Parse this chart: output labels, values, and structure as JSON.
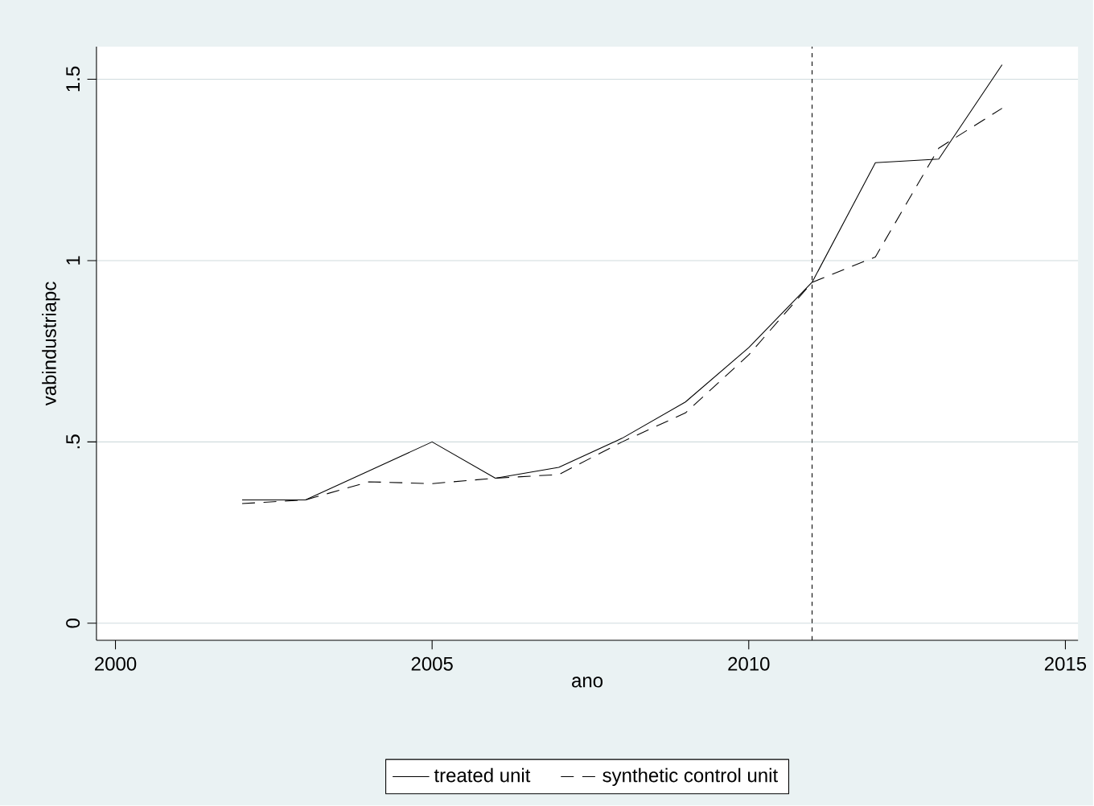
{
  "chart_data": {
    "type": "line",
    "xlabel": "ano",
    "ylabel": "vabindustriapc",
    "x": [
      2002,
      2003,
      2004,
      2005,
      2006,
      2007,
      2008,
      2009,
      2010,
      2011,
      2012,
      2013,
      2014
    ],
    "series": [
      {
        "name": "treated unit",
        "color": "#000000",
        "line_style": "solid",
        "values": [
          0.34,
          0.34,
          0.42,
          0.5,
          0.4,
          0.43,
          0.51,
          0.61,
          0.76,
          0.94,
          1.27,
          1.28,
          1.54
        ]
      },
      {
        "name": "synthetic control unit",
        "color": "#000000",
        "line_style": "dashed",
        "values": [
          0.33,
          0.34,
          0.39,
          0.385,
          0.4,
          0.41,
          0.5,
          0.58,
          0.74,
          0.94,
          1.01,
          1.31,
          1.42
        ]
      }
    ],
    "xlim": [
      1999.7,
      2015.2
    ],
    "ylim": [
      -0.047,
      1.59
    ],
    "xticks": [
      2000,
      2005,
      2010,
      2015
    ],
    "yticks": [
      0,
      {
        "value": 0.5,
        "label": ".5"
      },
      1,
      1.5
    ],
    "ref_lines": [
      {
        "axis": "x",
        "value": 2011,
        "line_style": "dotted"
      }
    ],
    "grid": "y",
    "legend": "bottom",
    "marker": "none"
  }
}
